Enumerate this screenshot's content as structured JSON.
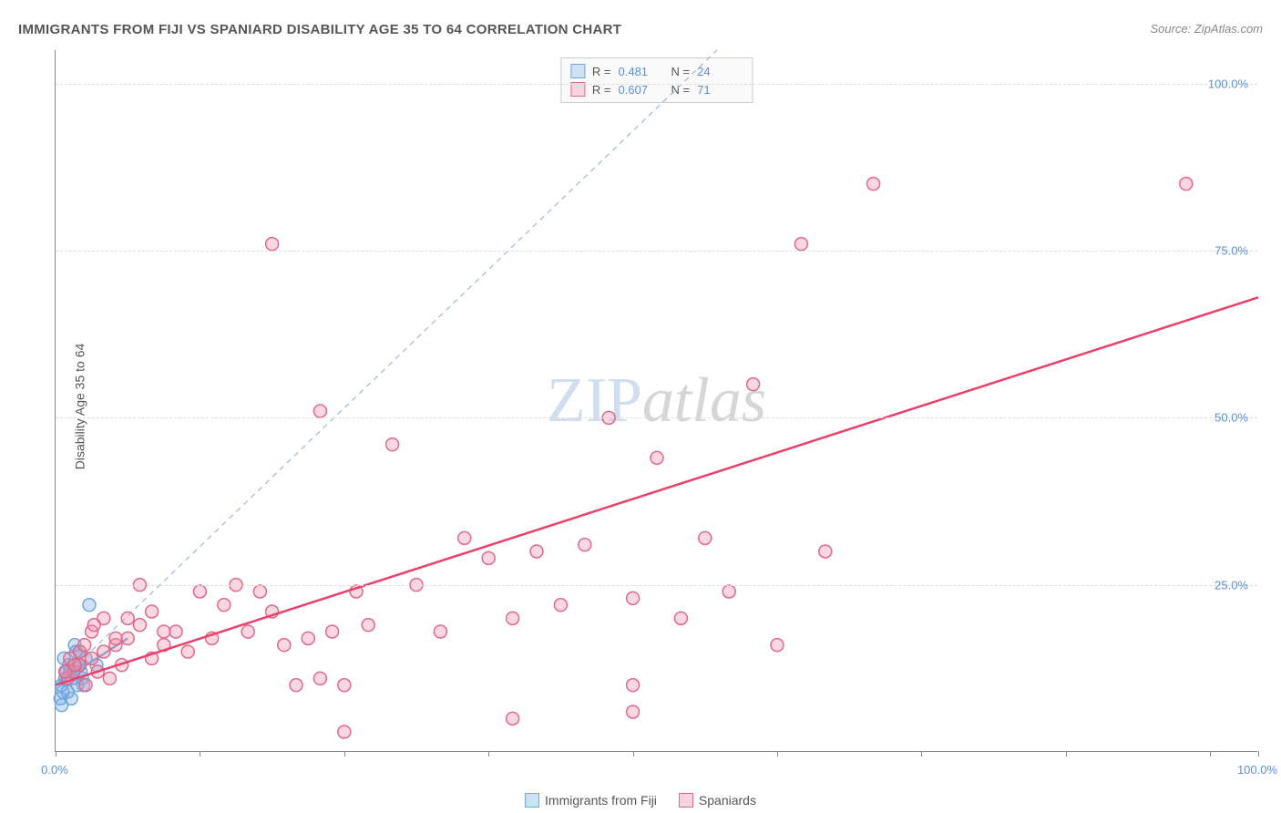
{
  "title": "IMMIGRANTS FROM FIJI VS SPANIARD DISABILITY AGE 35 TO 64 CORRELATION CHART",
  "source": "Source: ZipAtlas.com",
  "ylabel": "Disability Age 35 to 64",
  "watermark_zip": "ZIP",
  "watermark_atlas": "atlas",
  "chart": {
    "type": "scatter",
    "background_color": "#ffffff",
    "grid_color": "#dddddd",
    "axis_color": "#888888",
    "tick_label_color": "#5b8fd6",
    "xlim": [
      0,
      100
    ],
    "ylim": [
      0,
      105
    ],
    "y_gridlines": [
      25,
      50,
      75,
      100
    ],
    "y_tick_labels": [
      "25.0%",
      "50.0%",
      "75.0%",
      "100.0%"
    ],
    "x_ticks": [
      0,
      12,
      24,
      36,
      48,
      60,
      72,
      84,
      96,
      100
    ],
    "x_min_label": "0.0%",
    "x_max_label": "100.0%",
    "marker_radius": 7,
    "marker_stroke_width": 1.5,
    "series": [
      {
        "name": "Immigrants from Fiji",
        "fill_color": "rgba(120,170,230,0.35)",
        "stroke_color": "#6fa8dc",
        "swatch_fill": "#cfe2f3",
        "swatch_border": "#6fa8dc",
        "r_value": "0.481",
        "n_value": "24",
        "trendline": {
          "x1": 0,
          "y1": 10,
          "x2": 6,
          "y2": 17,
          "stroke": "#6fa8dc",
          "stroke_width": 2.5
        },
        "points": [
          [
            0.5,
            10
          ],
          [
            0.8,
            11
          ],
          [
            1.0,
            9
          ],
          [
            1.2,
            12
          ],
          [
            1.5,
            13
          ],
          [
            0.7,
            14
          ],
          [
            2.0,
            15
          ],
          [
            2.2,
            11
          ],
          [
            1.8,
            10
          ],
          [
            1.3,
            8
          ],
          [
            0.9,
            12
          ],
          [
            1.1,
            13
          ],
          [
            2.5,
            14
          ],
          [
            1.6,
            16
          ],
          [
            2.1,
            12
          ],
          [
            0.6,
            9
          ],
          [
            1.4,
            11
          ],
          [
            1.9,
            13
          ],
          [
            0.4,
            8
          ],
          [
            1.7,
            15
          ],
          [
            2.3,
            10
          ],
          [
            2.8,
            22
          ],
          [
            3.4,
            13
          ],
          [
            0.5,
            7
          ]
        ]
      },
      {
        "name": "Spaniards",
        "fill_color": "rgba(240,140,170,0.35)",
        "stroke_color": "#e06989",
        "swatch_fill": "#f9d4de",
        "swatch_border": "#e06989",
        "r_value": "0.607",
        "n_value": "71",
        "trendline": {
          "x1": 0,
          "y1": 10,
          "x2": 100,
          "y2": 68,
          "stroke": "#e8416b",
          "stroke_width": 2.5
        },
        "points": [
          [
            1,
            11
          ],
          [
            1.5,
            12
          ],
          [
            2,
            13
          ],
          [
            2.5,
            10
          ],
          [
            3,
            14
          ],
          [
            3.5,
            12
          ],
          [
            4,
            15
          ],
          [
            4.5,
            11
          ],
          [
            5,
            16
          ],
          [
            5.5,
            13
          ],
          [
            6,
            17
          ],
          [
            7,
            19
          ],
          [
            8,
            14
          ],
          [
            9,
            16
          ],
          [
            10,
            18
          ],
          [
            11,
            15
          ],
          [
            12,
            24
          ],
          [
            13,
            17
          ],
          [
            14,
            22
          ],
          [
            15,
            25
          ],
          [
            16,
            18
          ],
          [
            17,
            24
          ],
          [
            18,
            21
          ],
          [
            19,
            16
          ],
          [
            20,
            10
          ],
          [
            21,
            17
          ],
          [
            22,
            11
          ],
          [
            23,
            18
          ],
          [
            24,
            10
          ],
          [
            25,
            24
          ],
          [
            26,
            19
          ],
          [
            28,
            46
          ],
          [
            30,
            25
          ],
          [
            32,
            18
          ],
          [
            34,
            32
          ],
          [
            36,
            29
          ],
          [
            38,
            20
          ],
          [
            40,
            30
          ],
          [
            42,
            22
          ],
          [
            44,
            31
          ],
          [
            46,
            50
          ],
          [
            48,
            23
          ],
          [
            50,
            44
          ],
          [
            52,
            20
          ],
          [
            54,
            32
          ],
          [
            56,
            24
          ],
          [
            58,
            55
          ],
          [
            60,
            16
          ],
          [
            62,
            76
          ],
          [
            64,
            30
          ],
          [
            18,
            76
          ],
          [
            22,
            51
          ],
          [
            24,
            3
          ],
          [
            38,
            5
          ],
          [
            48,
            6
          ],
          [
            48,
            10
          ],
          [
            68,
            85
          ],
          [
            94,
            85
          ],
          [
            6,
            20
          ],
          [
            7,
            25
          ],
          [
            8,
            21
          ],
          [
            9,
            18
          ],
          [
            3,
            18
          ],
          [
            4,
            20
          ],
          [
            5,
            17
          ],
          [
            2,
            15
          ],
          [
            1.2,
            14
          ],
          [
            0.8,
            12
          ],
          [
            1.6,
            13
          ],
          [
            2.4,
            16
          ],
          [
            3.2,
            19
          ]
        ]
      }
    ],
    "reference_line": {
      "x1": 0,
      "y1": 10,
      "x2": 55,
      "y2": 105,
      "stroke": "#9fb8d9",
      "dash": "6,5",
      "stroke_width": 1.2
    }
  },
  "legend_top": {
    "r_label": "R  =",
    "n_label": "N  ="
  },
  "legend_bottom": {
    "items": [
      "Immigrants from Fiji",
      "Spaniards"
    ]
  }
}
